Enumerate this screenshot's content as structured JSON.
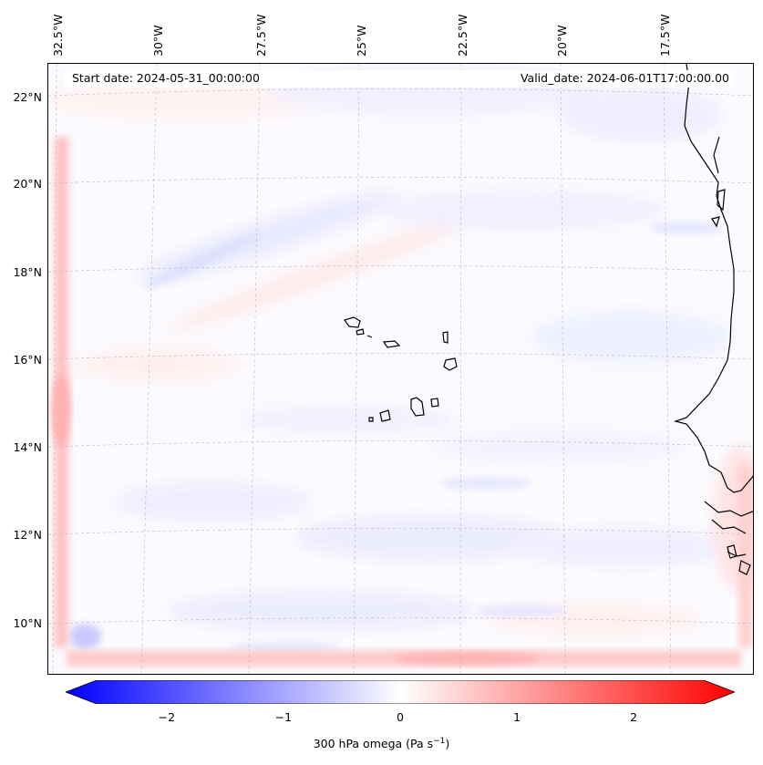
{
  "map": {
    "start_label": "Start date: 2024-05-31_00:00:00",
    "valid_label": "Valid_date: 2024-06-01T17:00:00.00",
    "lon_labels": [
      "32.5°W",
      "30°W",
      "27.5°W",
      "25°W",
      "22.5°W",
      "20°W",
      "17.5°W"
    ],
    "lat_labels": [
      "22°N",
      "20°N",
      "18°N",
      "16°N",
      "14°N",
      "12°N",
      "10°N"
    ],
    "colors": {
      "negative": "#0000ff",
      "zero": "#ffffff",
      "positive": "#ff0000",
      "coast": "#000000"
    }
  },
  "colorbar": {
    "ticks": [
      "−2",
      "−1",
      "0",
      "1",
      "2"
    ],
    "tick_values": [
      -2,
      -1,
      0,
      1,
      2
    ],
    "range": [
      -2.6,
      2.6
    ],
    "label_main": "300 hPa omega (Pa s",
    "label_sup": "−1",
    "label_end": ")"
  }
}
